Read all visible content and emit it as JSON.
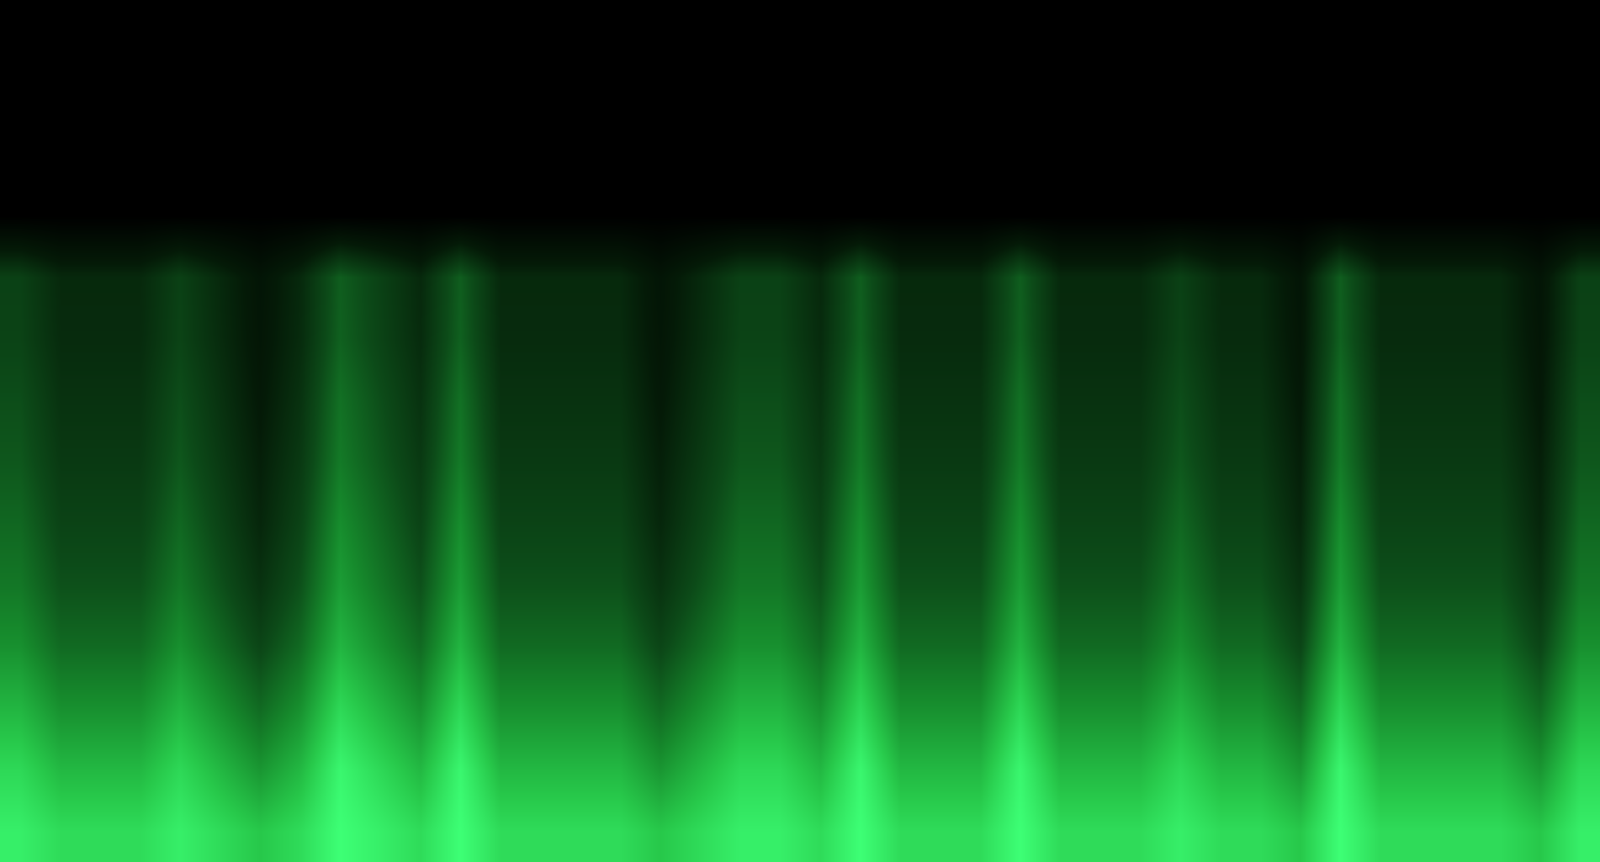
{
  "chart_data": {
    "type": "heatmap",
    "tick_labels": false,
    "zlim": [
      0,
      100
    ],
    "z": [
      [
        94,
        87,
        87,
        87,
        94,
        87,
        80,
        87,
        100,
        94,
        87,
        100,
        87,
        87,
        87,
        87,
        80,
        87,
        94,
        94,
        87,
        100,
        87,
        87,
        87,
        100,
        87,
        87,
        87,
        94,
        87,
        87,
        80,
        100,
        87,
        87,
        87,
        87,
        80,
        94
      ],
      [
        86,
        75,
        75,
        75,
        86,
        75,
        64,
        75,
        97,
        86,
        75,
        97,
        75,
        75,
        75,
        75,
        64,
        75,
        86,
        86,
        75,
        97,
        75,
        75,
        75,
        97,
        75,
        75,
        75,
        86,
        75,
        75,
        64,
        97,
        75,
        75,
        75,
        75,
        64,
        86
      ],
      [
        74,
        62,
        62,
        62,
        74,
        62,
        50,
        62,
        86,
        74,
        62,
        86,
        62,
        62,
        62,
        62,
        50,
        62,
        74,
        74,
        62,
        86,
        62,
        62,
        62,
        86,
        62,
        62,
        62,
        74,
        62,
        62,
        50,
        86,
        62,
        62,
        62,
        62,
        50,
        74
      ],
      [
        62,
        50,
        50,
        50,
        62,
        50,
        38,
        50,
        74,
        62,
        50,
        74,
        50,
        50,
        50,
        50,
        38,
        50,
        62,
        62,
        50,
        74,
        50,
        50,
        50,
        74,
        50,
        50,
        50,
        62,
        50,
        50,
        38,
        74,
        50,
        50,
        50,
        50,
        38,
        62
      ],
      [
        54,
        42,
        42,
        42,
        54,
        42,
        30,
        42,
        66,
        54,
        42,
        66,
        42,
        42,
        42,
        42,
        30,
        42,
        54,
        54,
        42,
        66,
        42,
        42,
        42,
        66,
        42,
        42,
        42,
        54,
        42,
        42,
        30,
        66,
        42,
        42,
        42,
        42,
        30,
        54
      ],
      [
        49,
        37,
        37,
        37,
        49,
        37,
        25,
        37,
        61,
        49,
        37,
        61,
        37,
        37,
        37,
        37,
        25,
        37,
        49,
        49,
        37,
        61,
        37,
        37,
        37,
        61,
        37,
        37,
        37,
        49,
        37,
        37,
        25,
        61,
        37,
        37,
        37,
        37,
        25,
        49
      ],
      [
        44,
        33,
        33,
        33,
        44,
        33,
        22,
        33,
        55,
        44,
        33,
        55,
        33,
        33,
        33,
        33,
        22,
        33,
        44,
        44,
        33,
        55,
        33,
        33,
        33,
        55,
        33,
        33,
        33,
        44,
        33,
        33,
        22,
        55,
        33,
        33,
        33,
        33,
        22,
        44
      ],
      [
        41,
        30,
        30,
        30,
        41,
        30,
        19,
        30,
        52,
        41,
        30,
        52,
        30,
        30,
        30,
        30,
        19,
        30,
        41,
        41,
        30,
        52,
        30,
        30,
        30,
        52,
        30,
        30,
        30,
        41,
        30,
        30,
        19,
        52,
        30,
        30,
        30,
        30,
        19,
        41
      ],
      [
        37,
        27,
        27,
        27,
        37,
        27,
        17,
        27,
        47,
        37,
        27,
        47,
        27,
        27,
        27,
        27,
        17,
        27,
        37,
        37,
        27,
        47,
        27,
        27,
        27,
        47,
        27,
        27,
        27,
        37,
        27,
        27,
        17,
        47,
        27,
        27,
        27,
        27,
        17,
        37
      ],
      [
        36,
        26,
        26,
        26,
        36,
        26,
        16,
        26,
        46,
        36,
        26,
        46,
        26,
        26,
        26,
        26,
        16,
        26,
        36,
        36,
        26,
        46,
        26,
        26,
        26,
        46,
        26,
        26,
        26,
        36,
        26,
        26,
        16,
        46,
        26,
        26,
        26,
        26,
        16,
        36
      ],
      [
        0,
        0,
        0,
        0,
        0,
        0,
        0,
        0,
        0,
        0,
        0,
        0,
        0,
        0,
        0,
        0,
        0,
        0,
        0,
        0,
        0,
        0,
        0,
        0,
        0,
        0,
        0,
        0,
        0,
        0,
        0,
        0,
        0,
        0,
        0,
        0,
        0,
        0,
        0,
        0
      ],
      [
        0,
        0,
        0,
        0,
        0,
        0,
        0,
        0,
        0,
        0,
        0,
        0,
        0,
        0,
        0,
        0,
        0,
        0,
        0,
        0,
        0,
        0,
        0,
        0,
        0,
        0,
        0,
        0,
        0,
        0,
        0,
        0,
        0,
        0,
        0,
        0,
        0,
        0,
        0,
        0
      ],
      [
        0,
        0,
        0,
        0,
        0,
        0,
        0,
        0,
        0,
        0,
        0,
        0,
        0,
        0,
        0,
        0,
        0,
        0,
        0,
        0,
        0,
        0,
        0,
        0,
        0,
        0,
        0,
        0,
        0,
        0,
        0,
        0,
        0,
        0,
        0,
        0,
        0,
        0,
        0,
        0
      ],
      [
        0,
        0,
        0,
        0,
        0,
        0,
        0,
        0,
        0,
        0,
        0,
        0,
        0,
        0,
        0,
        0,
        0,
        0,
        0,
        0,
        0,
        0,
        0,
        0,
        0,
        0,
        0,
        0,
        0,
        0,
        0,
        0,
        0,
        0,
        0,
        0,
        0,
        0,
        0,
        0
      ]
    ]
  }
}
